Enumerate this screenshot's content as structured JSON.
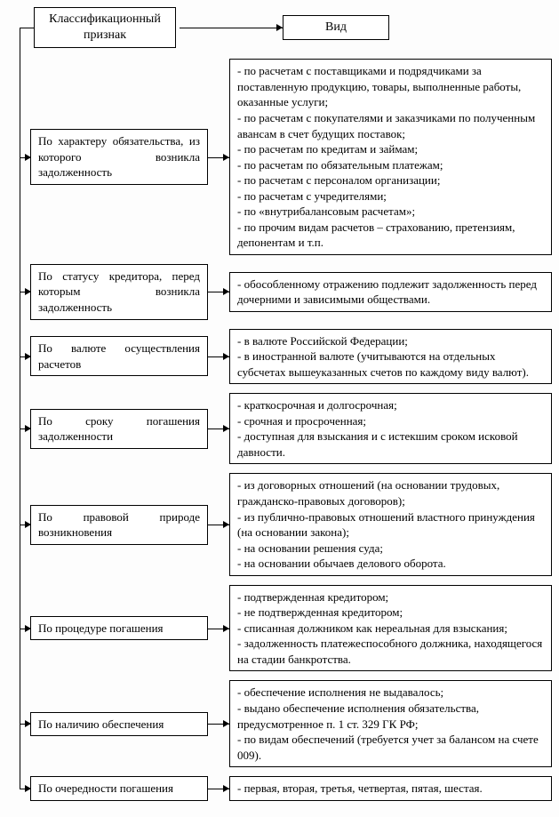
{
  "headers": {
    "left": "Классификационный признак",
    "right": "Вид"
  },
  "rows": [
    {
      "left": "По характеру обязательства, из которого возникла задолженность",
      "right_items": [
        "по расчетам с поставщиками и подрядчиками за поставленную продукцию, товары, выполненные работы, оказанные услуги;",
        "по расчетам с покупателями и заказчиками по полученным авансам в счет будущих поставок;",
        "по расчетам по кредитам и займам;",
        "по расчетам по обязательным платежам;",
        "по расчетам с персоналом организации;",
        "по расчетам с учредителями;",
        "по «внутрибалансовым расчетам»;",
        "по прочим видам расчетов – страхованию, претензиям, депонентам и т.п."
      ]
    },
    {
      "left": "По статусу кредитора, перед которым возникла задолженность",
      "right_items": [
        "обособленному отражению подлежит задолженность перед дочерними и зависимыми обществами."
      ]
    },
    {
      "left": "По валюте осуществления расчетов",
      "right_items": [
        "в валюте Российской Федерации;",
        "в иностранной валюте (учитываются на отдельных субсчетах вышеуказанных счетов по каждому виду валют)."
      ]
    },
    {
      "left": "По сроку погашения задолженности",
      "right_items": [
        "краткосрочная и долгосрочная;",
        "срочная и просроченная;",
        "доступная для взыскания и с истекшим сроком исковой давности."
      ]
    },
    {
      "left": "По правовой природе возникновения",
      "right_items": [
        "из договорных отношений (на основании трудовых, гражданско-правовых договоров);",
        "из публично-правовых отношений властного принуждения (на основании закона);",
        "на основании решения суда;",
        "на основании обычаев делового оборота."
      ]
    },
    {
      "left": "По процедуре погашения",
      "right_items": [
        "подтвержденная кредитором;",
        "не подтвержденная кредитором;",
        "списанная должником как нереальная для взыскания;",
        "задолженность платежеспособного должника, находящегося на стадии банкротства."
      ]
    },
    {
      "left": "По наличию обеспечения",
      "right_items": [
        "обеспечение исполнения не выдавалось;",
        "выдано обеспечение исполнения обязательства, предусмотренное п. 1 ст. 329 ГК РФ;",
        "по видам обеспечений (требуется учет за балансом на счете 009)."
      ]
    },
    {
      "left": "По очередности погашения",
      "right_items": [
        "первая, вторая, третья, четвертая, пятая, шестая."
      ]
    }
  ]
}
